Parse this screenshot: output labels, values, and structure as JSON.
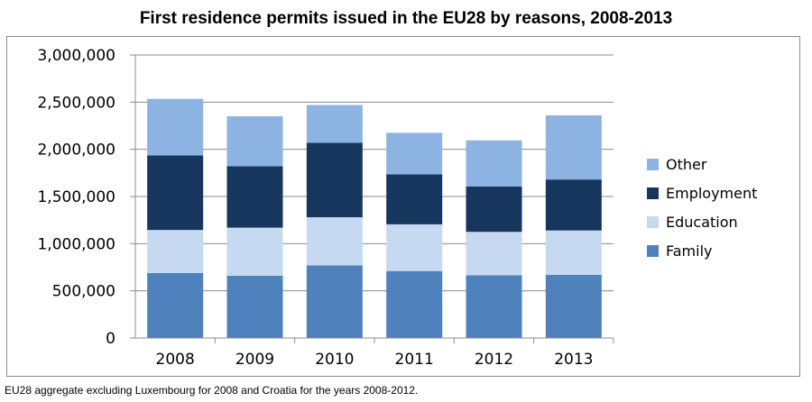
{
  "chart_data": {
    "type": "bar",
    "stacked": true,
    "title": "First residence permits issued in the EU28 by reasons, 2008-2013",
    "categories": [
      "2008",
      "2009",
      "2010",
      "2011",
      "2012",
      "2013"
    ],
    "series": [
      {
        "name": "Family",
        "color": "#4f81bd",
        "values": [
          690000,
          660000,
          770000,
          710000,
          665000,
          670000
        ]
      },
      {
        "name": "Education",
        "color": "#c6d9f1",
        "values": [
          455000,
          510000,
          510000,
          495000,
          460000,
          470000
        ]
      },
      {
        "name": "Employment",
        "color": "#17365d",
        "values": [
          790000,
          650000,
          790000,
          530000,
          480000,
          540000
        ]
      },
      {
        "name": "Other",
        "color": "#8db3e2",
        "values": [
          600000,
          530000,
          400000,
          440000,
          490000,
          680000
        ]
      }
    ],
    "y_ticks": [
      "0",
      "500,000",
      "1,000,000",
      "1,500,000",
      "2,000,000",
      "2,500,000",
      "3,000,000"
    ],
    "ylim": [
      0,
      3000000
    ],
    "legend_position": "right",
    "legend_order": [
      "Other",
      "Employment",
      "Education",
      "Family"
    ],
    "gridlines": true
  },
  "footnote": "EU28 aggregate excluding Luxembourg for 2008 and Croatia for the years 2008-2012."
}
